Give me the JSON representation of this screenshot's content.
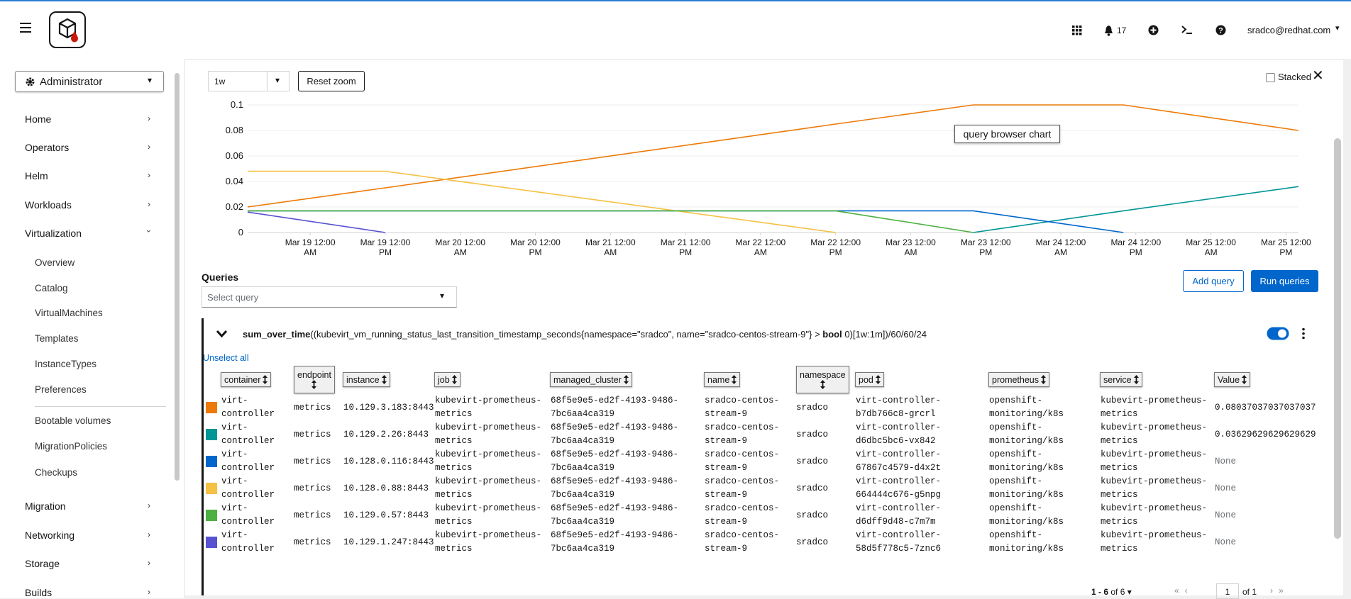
{
  "header": {
    "notifications": 17,
    "user": "sradco@redhat.com"
  },
  "sidebar": {
    "perspective": "Administrator",
    "nav": [
      "Home",
      "Operators",
      "Helm",
      "Workloads",
      "Virtualization",
      "Migration",
      "Networking",
      "Storage",
      "Builds"
    ],
    "virtualization_items": [
      "Overview",
      "Catalog",
      "VirtualMachines",
      "Templates",
      "InstanceTypes",
      "Preferences"
    ],
    "virtualization_items2": [
      "Bootable volumes",
      "MigrationPolicies",
      "Checkups"
    ]
  },
  "controls": {
    "range": "1w",
    "reset_zoom": "Reset zoom",
    "stacked": "Stacked"
  },
  "chart_data": {
    "type": "line",
    "tooltip": "query browser chart",
    "x": [
      "Mar 18 2:00 PM",
      "Mar 19 12:00 PM",
      "Mar 22 12:00 PM",
      "Mar 23 10:00 AM",
      "Mar 24 10:00 AM",
      "Mar 25 2:00 PM"
    ],
    "xlim": [
      "Mar 18 2:00 PM",
      "Mar 25 2:00 PM"
    ],
    "xticks": [
      "Mar 19 12:00 AM",
      "Mar 19 12:00 PM",
      "Mar 20 12:00 AM",
      "Mar 20 12:00 PM",
      "Mar 21 12:00 AM",
      "Mar 21 12:00 PM",
      "Mar 22 12:00 AM",
      "Mar 22 12:00 PM",
      "Mar 23 12:00 AM",
      "Mar 23 12:00 PM",
      "Mar 24 12:00 AM",
      "Mar 24 12:00 PM",
      "Mar 25 12:00 AM",
      "Mar 25 12:00 PM"
    ],
    "ylim": [
      0,
      0.1
    ],
    "yticks": [
      0,
      0.02,
      0.04,
      0.06,
      0.08,
      0.1
    ],
    "grid": true,
    "series": [
      {
        "color": "#ec7a08",
        "values": [
          0.02,
          0.035,
          0.085,
          0.1,
          0.1,
          0.08
        ]
      },
      {
        "color": "#009596",
        "values": [
          null,
          null,
          null,
          0,
          0.017,
          0.036
        ]
      },
      {
        "color": "#0066cc",
        "values": [
          0.017,
          0.017,
          0.017,
          0.017,
          0,
          null
        ]
      },
      {
        "color": "#f4c145",
        "values": [
          0.048,
          0.048,
          0,
          null,
          null,
          null
        ]
      },
      {
        "color": "#4cb140",
        "values": [
          0.017,
          0.017,
          0.017,
          0,
          null,
          null
        ]
      },
      {
        "color": "#5752d1",
        "values": [
          0.016,
          0,
          null,
          null,
          null,
          null
        ]
      }
    ]
  },
  "queries": {
    "title": "Queries",
    "select_placeholder": "Select query",
    "add_query": "Add query",
    "run_queries": "Run queries",
    "expression": [
      {
        "text": "sum_over_time",
        "bold": true
      },
      {
        "text": "((kubevirt_vm_running_status_last_transition_timestamp_seconds{namespace=\"sradco\", name=\"sradco-centos-stream-9\"} > ",
        "bold": false
      },
      {
        "text": "bool",
        "bold": true
      },
      {
        "text": " 0)[1w:1m])/60/60/24",
        "bold": false
      }
    ],
    "unselect_all": "Unselect all"
  },
  "table": {
    "columns": [
      "container",
      "endpoint",
      "instance",
      "job",
      "managed_cluster",
      "name",
      "namespace",
      "pod",
      "prometheus",
      "service",
      "Value"
    ],
    "rows": [
      [
        "virt-controller",
        "metrics",
        "10.129.3.183:8443",
        "kubevirt-prometheus-metrics",
        "68f5e9e5-ed2f-4193-9486-7bc6aa4ca319",
        "sradco-centos-stream-9",
        "sradco",
        "virt-controller-b7db766c8-grcrl",
        "openshift-monitoring/k8s",
        "kubevirt-prometheus-metrics",
        0.08037037037037037
      ],
      [
        "virt-controller",
        "metrics",
        "10.129.2.26:8443",
        "kubevirt-prometheus-metrics",
        "68f5e9e5-ed2f-4193-9486-7bc6aa4ca319",
        "sradco-centos-stream-9",
        "sradco",
        "virt-controller-d6dbc5bc6-vx842",
        "openshift-monitoring/k8s",
        "kubevirt-prometheus-metrics",
        0.03629629629629629
      ],
      [
        "virt-controller",
        "metrics",
        "10.128.0.116:8443",
        "kubevirt-prometheus-metrics",
        "68f5e9e5-ed2f-4193-9486-7bc6aa4ca319",
        "sradco-centos-stream-9",
        "sradco",
        "virt-controller-67867c4579-d4x2t",
        "openshift-monitoring/k8s",
        "kubevirt-prometheus-metrics",
        "None"
      ],
      [
        "virt-controller",
        "metrics",
        "10.128.0.88:8443",
        "kubevirt-prometheus-metrics",
        "68f5e9e5-ed2f-4193-9486-7bc6aa4ca319",
        "sradco-centos-stream-9",
        "sradco",
        "virt-controller-664444c676-g5npg",
        "openshift-monitoring/k8s",
        "kubevirt-prometheus-metrics",
        "None"
      ],
      [
        "virt-controller",
        "metrics",
        "10.129.0.57:8443",
        "kubevirt-prometheus-metrics",
        "68f5e9e5-ed2f-4193-9486-7bc6aa4ca319",
        "sradco-centos-stream-9",
        "sradco",
        "virt-controller-d6dff9d48-c7m7m",
        "openshift-monitoring/k8s",
        "kubevirt-prometheus-metrics",
        "None"
      ],
      [
        "virt-controller",
        "metrics",
        "10.129.1.247:8443",
        "kubevirt-prometheus-metrics",
        "68f5e9e5-ed2f-4193-9486-7bc6aa4ca319",
        "sradco-centos-stream-9",
        "sradco",
        "virt-controller-58d5f778c5-7znc6",
        "openshift-monitoring/k8s",
        "kubevirt-prometheus-metrics",
        "None"
      ]
    ]
  },
  "pagination": {
    "range": "1 - 6",
    "of": "of 6",
    "page": 1,
    "pages": "of 1"
  }
}
